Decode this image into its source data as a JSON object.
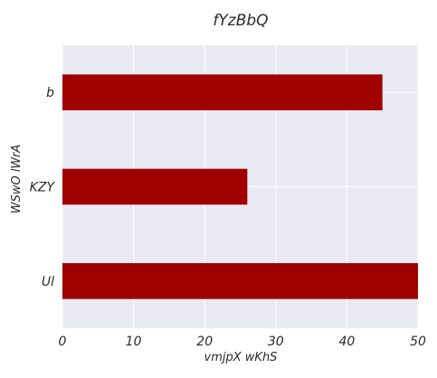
{
  "chart_data": {
    "type": "bar",
    "orientation": "horizontal",
    "title": "fYzBbQ",
    "xlabel": "vmjpX wKhS",
    "ylabel": "WSwO lWrA",
    "categories": [
      "b",
      "KZY",
      "Ul"
    ],
    "values": [
      45,
      26,
      50
    ],
    "xlim": [
      0,
      50
    ],
    "xticks": [
      "0",
      "10",
      "20",
      "30",
      "40",
      "50"
    ],
    "grid": true,
    "legend": "none",
    "bar_color": "#a10000",
    "plot_background": "#eaeaf2"
  }
}
